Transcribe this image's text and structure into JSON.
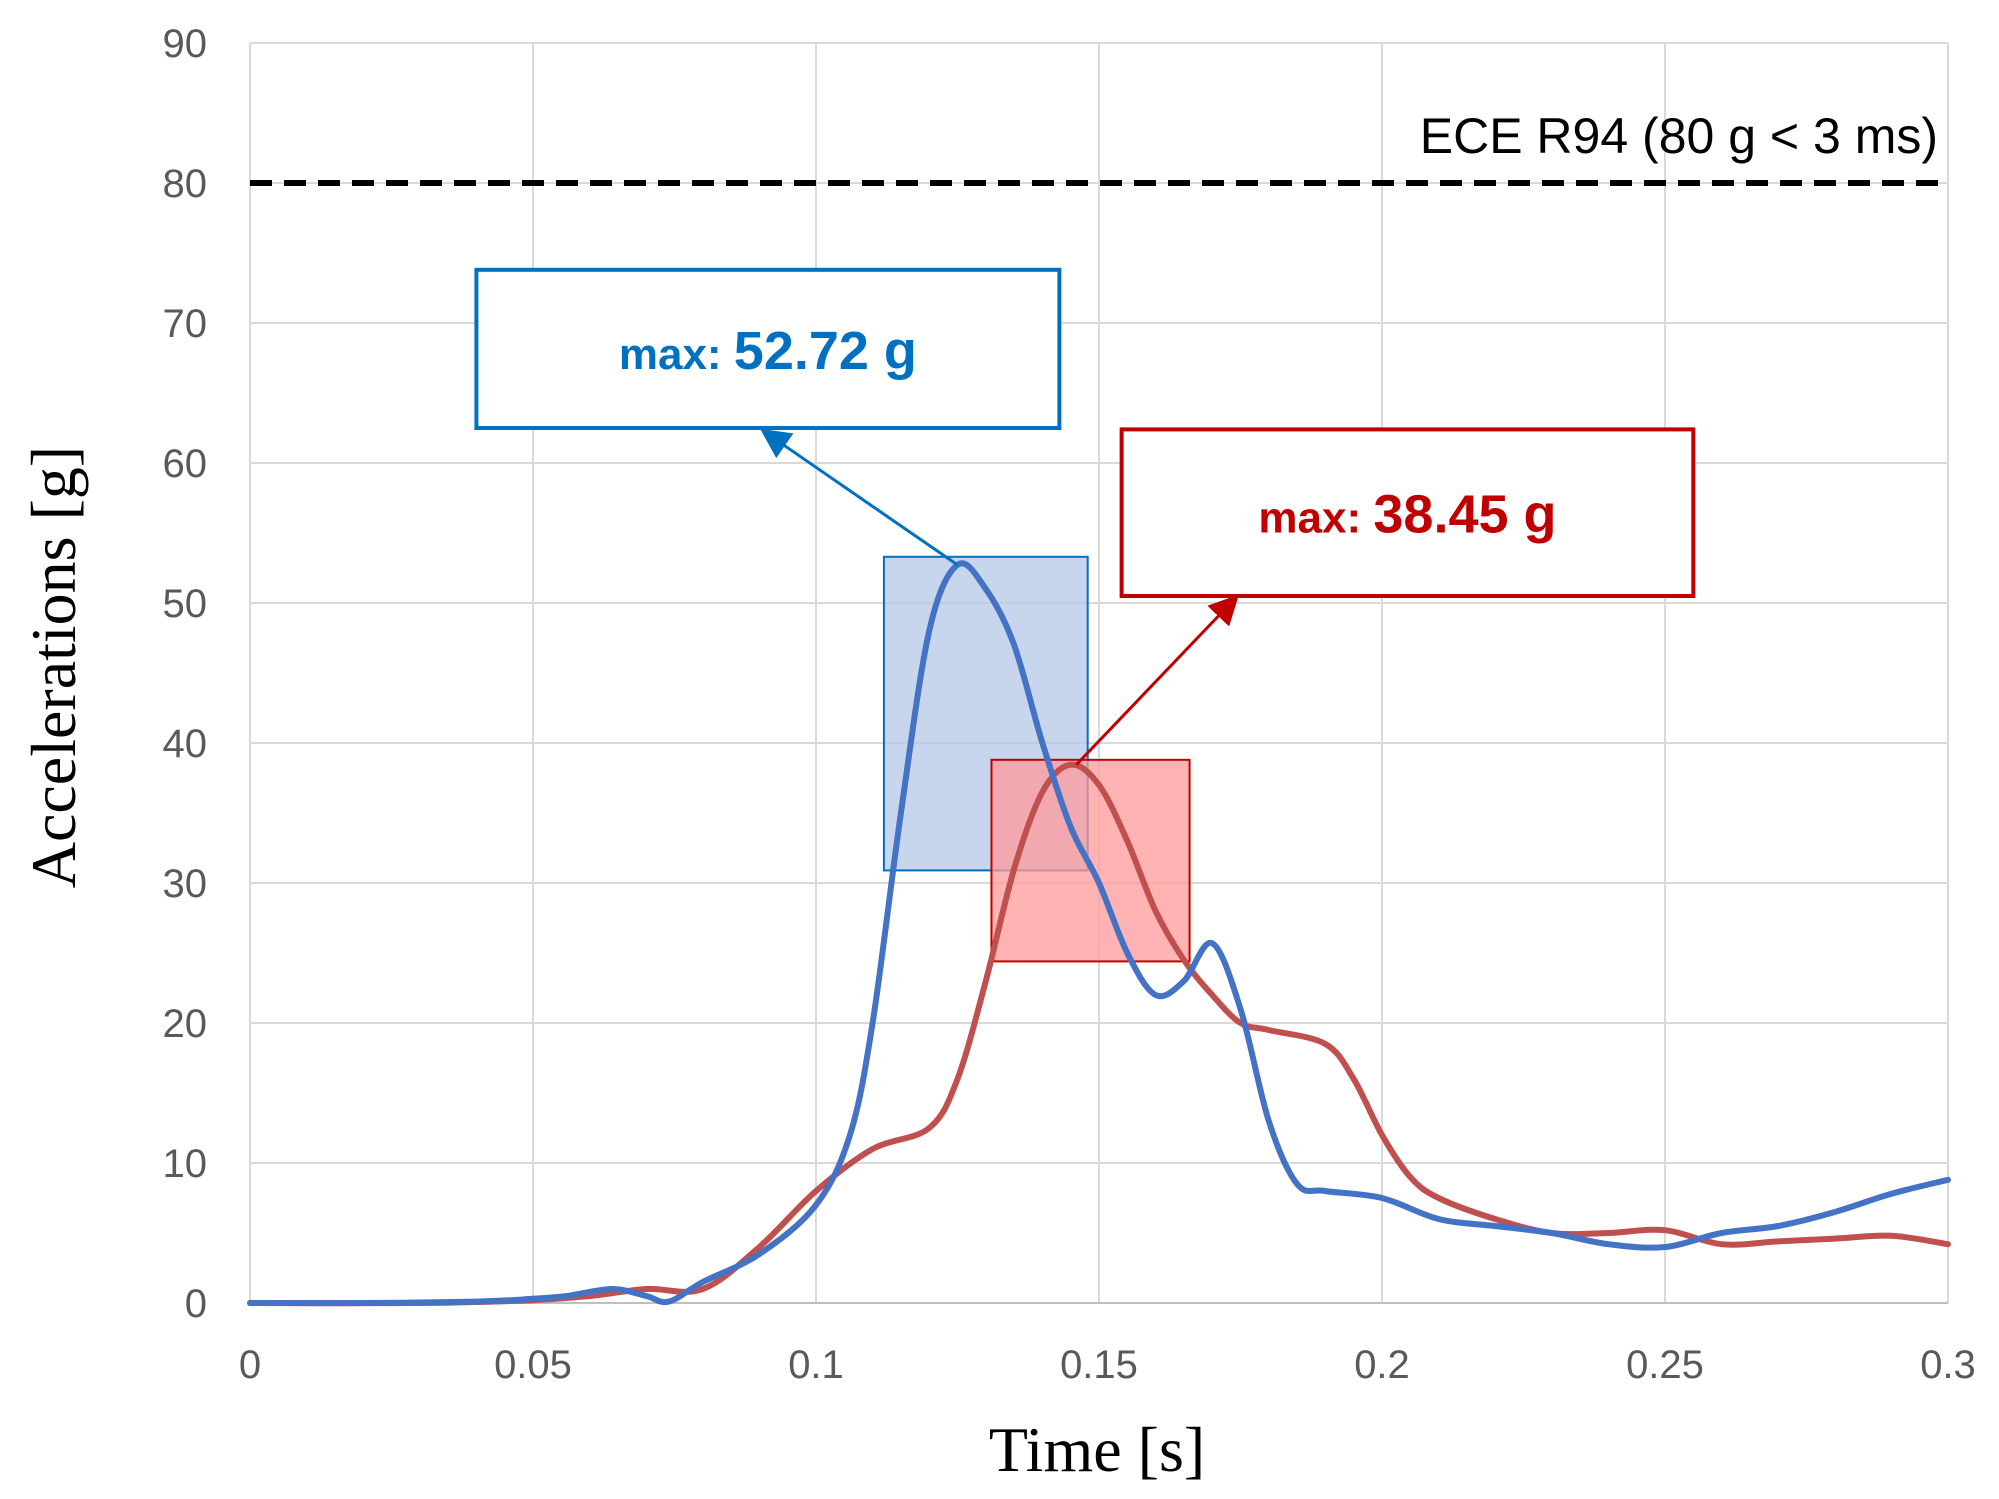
{
  "chart_data": {
    "type": "line",
    "title": "",
    "xlabel": "Time [s]",
    "ylabel": "Accelerations [g]",
    "xlim": [
      0,
      0.3
    ],
    "ylim": [
      0,
      90
    ],
    "xticks": [
      0,
      0.05,
      0.1,
      0.15,
      0.2,
      0.25,
      0.3
    ],
    "xtick_labels": [
      "0",
      "0.05",
      "0.1",
      "0.15",
      "0.2",
      "0.25",
      "0.3"
    ],
    "yticks": [
      0,
      10,
      20,
      30,
      40,
      50,
      60,
      70,
      80,
      90
    ],
    "ytick_labels": [
      "0",
      "10",
      "20",
      "30",
      "40",
      "50",
      "60",
      "70",
      "80",
      "90"
    ],
    "grid": true,
    "threshold": {
      "value": 80,
      "label": "ECE R94 (80 g < 3 ms)",
      "color": "#000000",
      "style": "dashed"
    },
    "series": [
      {
        "name": "blue",
        "color": "#4472c4",
        "x": [
          0,
          0.02,
          0.04,
          0.05,
          0.056,
          0.064,
          0.07,
          0.074,
          0.08,
          0.09,
          0.1,
          0.106,
          0.11,
          0.115,
          0.12,
          0.125,
          0.13,
          0.135,
          0.14,
          0.145,
          0.15,
          0.155,
          0.16,
          0.165,
          0.17,
          0.175,
          0.18,
          0.185,
          0.19,
          0.2,
          0.21,
          0.22,
          0.23,
          0.24,
          0.25,
          0.26,
          0.27,
          0.28,
          0.29,
          0.3
        ],
        "y": [
          0,
          0,
          0.1,
          0.3,
          0.5,
          1.0,
          0.5,
          0.1,
          1.5,
          3.5,
          7.0,
          12.0,
          20.0,
          35.0,
          48.0,
          52.72,
          51.0,
          47.0,
          40.0,
          34.0,
          30.0,
          25.0,
          22.0,
          23.0,
          25.7,
          21.0,
          13.0,
          8.5,
          8.0,
          7.5,
          6.0,
          5.5,
          5.0,
          4.2,
          4.0,
          5.0,
          5.5,
          6.5,
          7.8,
          8.8
        ]
      },
      {
        "name": "red",
        "color": "#c0504d",
        "x": [
          0,
          0.03,
          0.05,
          0.06,
          0.07,
          0.08,
          0.09,
          0.1,
          0.11,
          0.12,
          0.125,
          0.13,
          0.135,
          0.14,
          0.145,
          0.15,
          0.155,
          0.16,
          0.165,
          0.17,
          0.175,
          0.18,
          0.19,
          0.195,
          0.2,
          0.205,
          0.21,
          0.22,
          0.23,
          0.24,
          0.25,
          0.26,
          0.27,
          0.28,
          0.29,
          0.3
        ],
        "y": [
          0,
          0,
          0.2,
          0.5,
          1.0,
          1.0,
          4.0,
          8.0,
          11.0,
          12.5,
          16.0,
          23.0,
          31.0,
          36.5,
          38.45,
          37.0,
          33.0,
          28.0,
          24.5,
          22.0,
          20.0,
          19.5,
          18.5,
          16.0,
          12.0,
          9.0,
          7.5,
          6.0,
          5.0,
          5.0,
          5.2,
          4.2,
          4.4,
          4.6,
          4.8,
          4.2
        ]
      }
    ],
    "annotations": [
      {
        "series": "blue",
        "prefix": "max:",
        "value": "52.72 g",
        "color": "#0070c0",
        "peak": [
          0.125,
          52.72
        ],
        "label_box_x": [
          0.04,
          0.143
        ],
        "label_box_y": [
          62.5,
          73.8
        ],
        "highlight_x": [
          0.112,
          0.148
        ],
        "highlight_y": [
          30.9,
          53.3
        ],
        "highlight_fill": "#b4c7e7",
        "arrow_to": [
          0.091,
          62.2
        ]
      },
      {
        "series": "red",
        "prefix": "max:",
        "value": "38.45 g",
        "color": "#c00000",
        "peak": [
          0.146,
          38.45
        ],
        "label_box_x": [
          0.154,
          0.255
        ],
        "label_box_y": [
          50.5,
          62.4
        ],
        "highlight_x": [
          0.131,
          0.166
        ],
        "highlight_y": [
          24.4,
          38.8
        ],
        "highlight_fill": "#ff9999",
        "arrow_to": [
          0.174,
          50.3
        ]
      }
    ]
  }
}
